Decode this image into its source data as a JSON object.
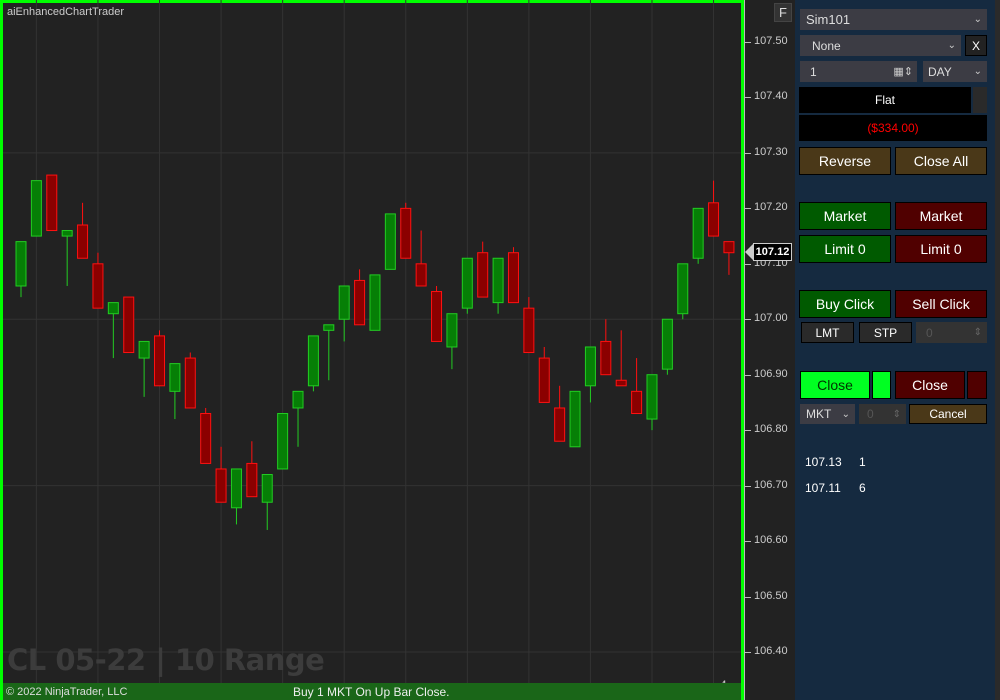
{
  "chart": {
    "title": "aiEnhancedChartTrader",
    "f_button": "F",
    "watermark": "CL 05-22 | 10 Range",
    "copyright": "© 2022 NinjaTrader, LLC",
    "status_message": "Buy 1 MKT On Up Bar Close.",
    "bar_counter": "4",
    "border_color": "#00ff00",
    "status_bar_color": "#1a6618"
  },
  "chart_data": {
    "type": "candlestick",
    "y_ticks": [
      "107.50",
      "107.40",
      "107.30",
      "107.20",
      "107.10",
      "107.00",
      "106.90",
      "106.80",
      "106.70",
      "106.60",
      "106.50",
      "106.40"
    ],
    "ylim": [
      106.37,
      107.58
    ],
    "current_price": "107.12",
    "up_color": "#067f06",
    "down_color": "#8b0000",
    "candles": [
      [
        107.06,
        107.14,
        107.04,
        107.14
      ],
      [
        107.15,
        107.25,
        107.15,
        107.25
      ],
      [
        107.26,
        107.26,
        107.16,
        107.16
      ],
      [
        107.15,
        107.16,
        107.06,
        107.16
      ],
      [
        107.17,
        107.21,
        107.11,
        107.11
      ],
      [
        107.1,
        107.12,
        107.02,
        107.02
      ],
      [
        107.01,
        107.03,
        106.93,
        107.03
      ],
      [
        107.04,
        107.04,
        106.94,
        106.94
      ],
      [
        106.93,
        106.96,
        106.86,
        106.96
      ],
      [
        106.97,
        106.98,
        106.88,
        106.88
      ],
      [
        106.87,
        106.92,
        106.82,
        106.92
      ],
      [
        106.93,
        106.94,
        106.84,
        106.84
      ],
      [
        106.83,
        106.84,
        106.74,
        106.74
      ],
      [
        106.73,
        106.77,
        106.67,
        106.67
      ],
      [
        106.66,
        106.73,
        106.63,
        106.73
      ],
      [
        106.74,
        106.78,
        106.68,
        106.68
      ],
      [
        106.67,
        106.72,
        106.62,
        106.72
      ],
      [
        106.73,
        106.83,
        106.73,
        106.83
      ],
      [
        106.84,
        106.87,
        106.77,
        106.87
      ],
      [
        106.88,
        106.97,
        106.87,
        106.97
      ],
      [
        106.98,
        106.99,
        106.89,
        106.99
      ],
      [
        107.0,
        107.06,
        106.96,
        107.06
      ],
      [
        107.07,
        107.09,
        106.99,
        106.99
      ],
      [
        106.98,
        107.08,
        106.98,
        107.08
      ],
      [
        107.09,
        107.19,
        107.09,
        107.19
      ],
      [
        107.2,
        107.21,
        107.11,
        107.11
      ],
      [
        107.1,
        107.16,
        107.06,
        107.06
      ],
      [
        107.05,
        107.06,
        106.96,
        106.96
      ],
      [
        106.95,
        107.01,
        106.91,
        107.01
      ],
      [
        107.02,
        107.11,
        107.01,
        107.11
      ],
      [
        107.12,
        107.14,
        107.04,
        107.04
      ],
      [
        107.03,
        107.11,
        107.01,
        107.11
      ],
      [
        107.12,
        107.13,
        107.03,
        107.03
      ],
      [
        107.02,
        107.04,
        106.94,
        106.94
      ],
      [
        106.93,
        106.95,
        106.85,
        106.85
      ],
      [
        106.84,
        106.88,
        106.78,
        106.78
      ],
      [
        106.77,
        106.87,
        106.77,
        106.87
      ],
      [
        106.88,
        106.95,
        106.85,
        106.95
      ],
      [
        106.96,
        107.0,
        106.9,
        106.9
      ],
      [
        106.89,
        106.98,
        106.88,
        106.88
      ],
      [
        106.87,
        106.93,
        106.83,
        106.83
      ],
      [
        106.82,
        106.9,
        106.8,
        106.9
      ],
      [
        106.91,
        107.0,
        106.9,
        107.0
      ],
      [
        107.01,
        107.1,
        107.0,
        107.1
      ],
      [
        107.11,
        107.2,
        107.1,
        107.2
      ],
      [
        107.21,
        107.25,
        107.15,
        107.15
      ],
      [
        107.14,
        107.14,
        107.08,
        107.12
      ]
    ],
    "candle_fields": [
      "open",
      "high",
      "low",
      "close"
    ],
    "grid": true
  },
  "panel": {
    "account": "Sim101",
    "atm": "None",
    "atm_clear": "X",
    "quantity": "1",
    "tif": "DAY",
    "position": "Flat",
    "pnl": "($334.00)",
    "reverse": "Reverse",
    "close_all": "Close All",
    "buy_market": "Market",
    "sell_market": "Market",
    "buy_limit": "Limit 0",
    "sell_limit": "Limit 0",
    "buy_click": "Buy Click",
    "sell_click": "Sell Click",
    "lmt": "LMT",
    "stp": "STP",
    "offset": "0",
    "close_long": "Close",
    "close_short": "Close",
    "order_type": "MKT",
    "order_offset": "0",
    "cancel": "Cancel",
    "levels": [
      {
        "price": "107.13",
        "qty": "1"
      },
      {
        "price": "107.11",
        "qty": "6"
      }
    ]
  }
}
